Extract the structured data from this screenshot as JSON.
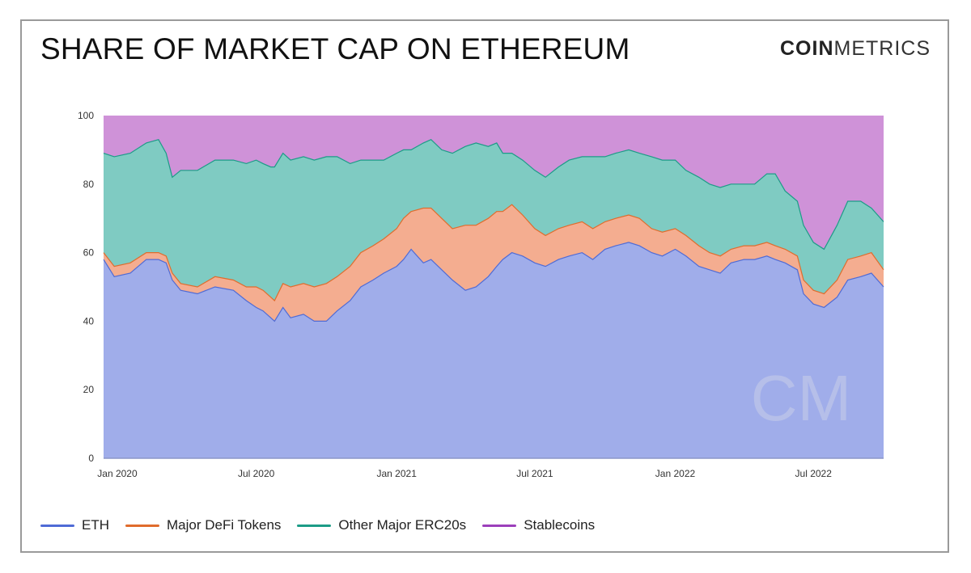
{
  "header": {
    "title": "SHARE OF MARKET CAP ON ETHEREUM",
    "logo_bold": "COIN",
    "logo_light": "METRICS",
    "watermark": "CM"
  },
  "chart_data": {
    "type": "area",
    "stacked": true,
    "title": "SHARE OF MARKET CAP ON ETHEREUM",
    "xlabel": "",
    "ylabel": "",
    "ylim": [
      0,
      100
    ],
    "yticks": [
      0,
      20,
      40,
      60,
      80,
      100
    ],
    "xlim": [
      "2019-12-14",
      "2022-10-01"
    ],
    "xticks": [
      {
        "date": "2020-01-01",
        "label": "Jan 2020"
      },
      {
        "date": "2020-07-01",
        "label": "Jul 2020"
      },
      {
        "date": "2021-01-01",
        "label": "Jan 2021"
      },
      {
        "date": "2021-07-01",
        "label": "Jul 2021"
      },
      {
        "date": "2022-01-01",
        "label": "Jan 2022"
      },
      {
        "date": "2022-07-01",
        "label": "Jul 2022"
      }
    ],
    "grid": false,
    "legend_position": "bottom-left",
    "x": [
      "2019-12-14",
      "2019-12-28",
      "2020-01-18",
      "2020-02-08",
      "2020-02-24",
      "2020-03-05",
      "2020-03-13",
      "2020-03-24",
      "2020-04-15",
      "2020-05-08",
      "2020-06-01",
      "2020-06-18",
      "2020-07-01",
      "2020-07-10",
      "2020-07-20",
      "2020-07-25",
      "2020-08-05",
      "2020-08-15",
      "2020-09-01",
      "2020-09-15",
      "2020-10-01",
      "2020-10-15",
      "2020-11-01",
      "2020-11-15",
      "2020-12-01",
      "2020-12-15",
      "2021-01-01",
      "2021-01-10",
      "2021-01-20",
      "2021-02-05",
      "2021-02-15",
      "2021-03-01",
      "2021-03-15",
      "2021-04-01",
      "2021-04-15",
      "2021-05-01",
      "2021-05-12",
      "2021-05-20",
      "2021-06-01",
      "2021-06-15",
      "2021-07-01",
      "2021-07-15",
      "2021-08-01",
      "2021-08-15",
      "2021-09-01",
      "2021-09-15",
      "2021-10-01",
      "2021-10-15",
      "2021-11-01",
      "2021-11-15",
      "2021-12-01",
      "2021-12-15",
      "2022-01-01",
      "2022-01-15",
      "2022-02-01",
      "2022-02-15",
      "2022-03-01",
      "2022-03-15",
      "2022-04-01",
      "2022-04-15",
      "2022-05-01",
      "2022-05-12",
      "2022-05-25",
      "2022-06-10",
      "2022-06-18",
      "2022-07-01",
      "2022-07-15",
      "2022-08-01",
      "2022-08-15",
      "2022-09-01",
      "2022-09-15",
      "2022-10-01"
    ],
    "series": [
      {
        "name": "ETH",
        "color": "#4f6bd6",
        "fill": "#a0adea",
        "values": [
          58,
          53,
          54,
          58,
          58,
          57,
          52,
          49,
          48,
          50,
          49,
          46,
          44,
          43,
          41,
          40,
          44,
          41,
          42,
          40,
          40,
          43,
          46,
          50,
          52,
          54,
          56,
          58,
          61,
          57,
          58,
          55,
          52,
          49,
          50,
          53,
          56,
          58,
          60,
          59,
          57,
          56,
          58,
          59,
          60,
          58,
          61,
          62,
          63,
          62,
          60,
          59,
          61,
          59,
          56,
          55,
          54,
          57,
          58,
          58,
          59,
          58,
          57,
          55,
          48,
          45,
          44,
          47,
          52,
          53,
          54,
          50
        ]
      },
      {
        "name": "Major DeFi Tokens",
        "color": "#e06c2c",
        "fill": "#f4ad90",
        "values": [
          2,
          3,
          3,
          2,
          2,
          2,
          2,
          2,
          2,
          3,
          3,
          4,
          6,
          6,
          6,
          6,
          7,
          9,
          9,
          10,
          11,
          10,
          10,
          10,
          10,
          10,
          11,
          12,
          11,
          16,
          15,
          15,
          15,
          19,
          18,
          17,
          16,
          14,
          14,
          12,
          10,
          9,
          9,
          9,
          9,
          9,
          8,
          8,
          8,
          8,
          7,
          7,
          6,
          6,
          6,
          5,
          5,
          4,
          4,
          4,
          4,
          4,
          4,
          4,
          4,
          4,
          4,
          5,
          6,
          6,
          6,
          5
        ]
      },
      {
        "name": "Other Major ERC20s",
        "color": "#1c9c87",
        "fill": "#7fcbc2",
        "values": [
          29,
          32,
          32,
          32,
          33,
          30,
          28,
          33,
          34,
          34,
          35,
          36,
          37,
          37,
          38,
          39,
          38,
          37,
          37,
          37,
          37,
          35,
          30,
          27,
          25,
          23,
          22,
          20,
          18,
          19,
          20,
          20,
          22,
          23,
          24,
          21,
          20,
          17,
          15,
          16,
          17,
          17,
          18,
          19,
          19,
          21,
          19,
          19,
          19,
          19,
          21,
          21,
          20,
          19,
          20,
          20,
          20,
          19,
          18,
          18,
          20,
          21,
          17,
          16,
          16,
          14,
          13,
          16,
          17,
          16,
          13,
          14
        ]
      },
      {
        "name": "Stablecoins",
        "color": "#9c3fbb",
        "fill": "#cf92d8",
        "values": [
          11,
          12,
          11,
          8,
          7,
          11,
          18,
          16,
          16,
          13,
          13,
          14,
          13,
          14,
          15,
          15,
          11,
          13,
          12,
          13,
          12,
          12,
          14,
          13,
          13,
          13,
          11,
          10,
          10,
          8,
          7,
          10,
          11,
          9,
          8,
          9,
          8,
          11,
          11,
          13,
          16,
          18,
          15,
          13,
          12,
          12,
          12,
          11,
          10,
          11,
          12,
          13,
          13,
          16,
          18,
          20,
          21,
          20,
          20,
          20,
          17,
          17,
          22,
          25,
          32,
          37,
          39,
          32,
          25,
          25,
          27,
          31
        ]
      }
    ]
  },
  "legend": [
    {
      "label": "ETH",
      "color": "#4f6bd6"
    },
    {
      "label": "Major DeFi Tokens",
      "color": "#e06c2c"
    },
    {
      "label": "Other Major ERC20s",
      "color": "#1c9c87"
    },
    {
      "label": "Stablecoins",
      "color": "#9c3fbb"
    }
  ]
}
